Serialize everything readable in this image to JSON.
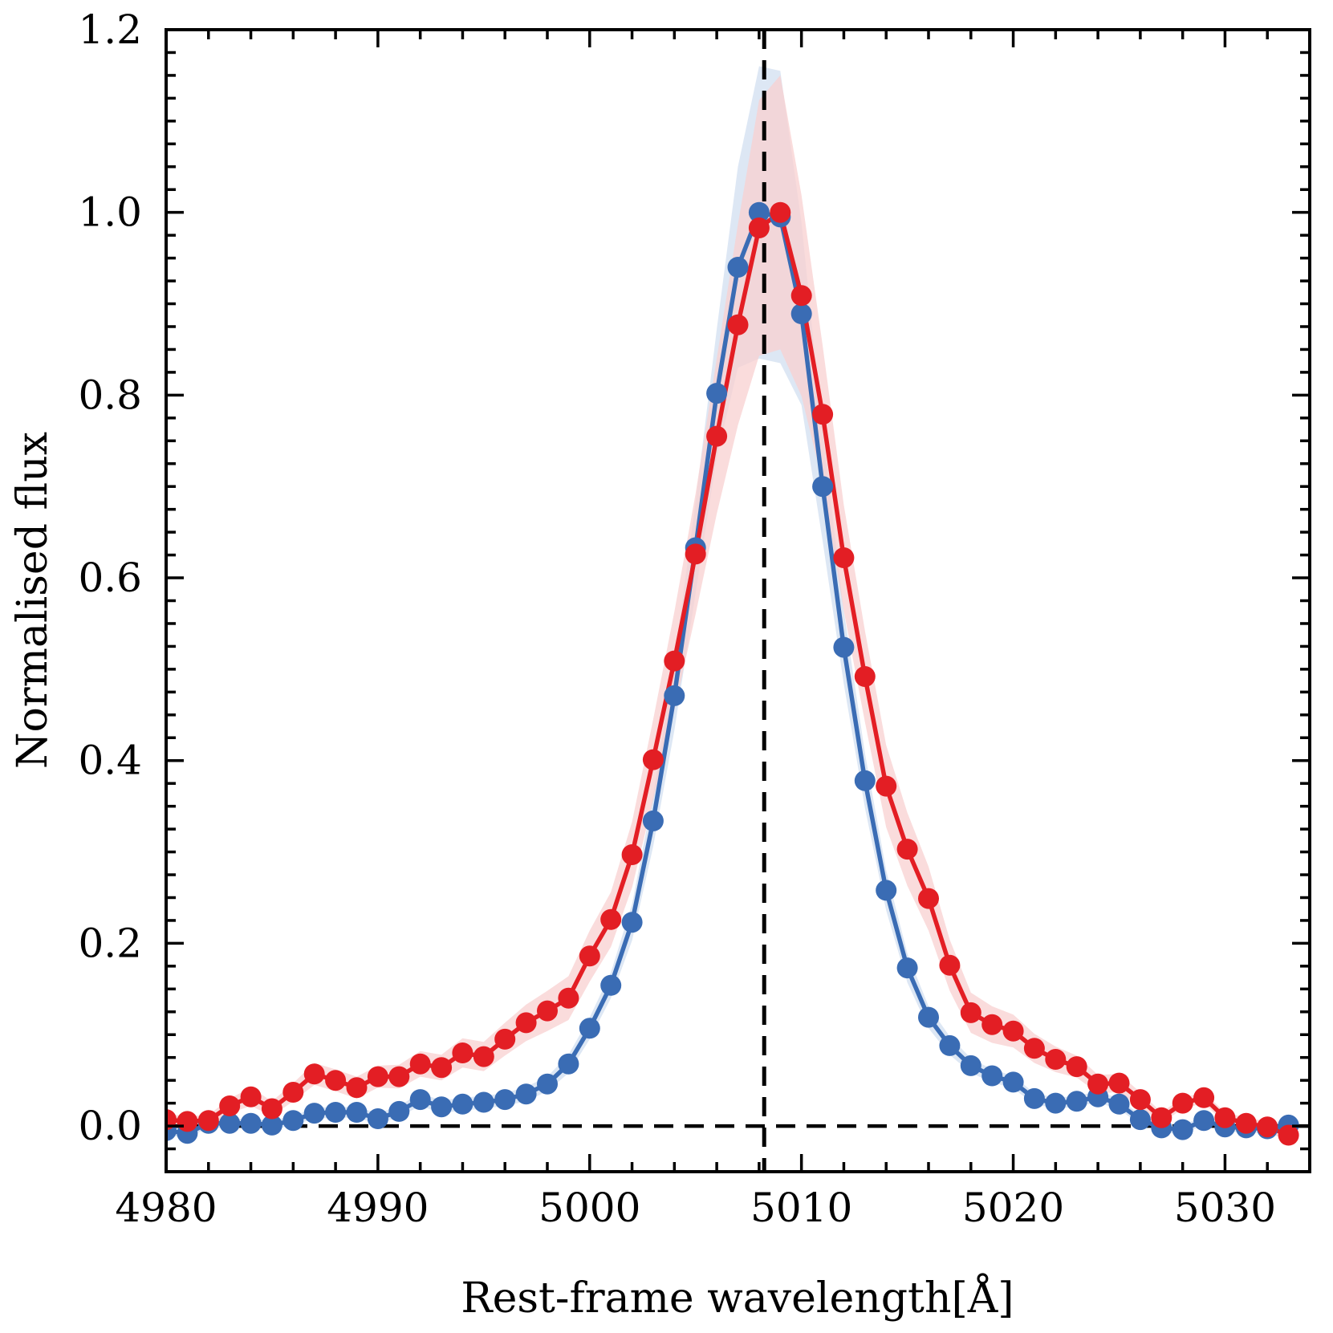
{
  "chart_data": {
    "type": "line",
    "title": "",
    "xlabel": "Rest-frame wavelength[Å]",
    "ylabel": "Normalised flux",
    "xlim": [
      4980,
      5034
    ],
    "ylim": [
      -0.05,
      1.2
    ],
    "xticks": [
      4980,
      4990,
      5000,
      5010,
      5020,
      5030
    ],
    "xtick_labels": [
      "4980",
      "4990",
      "5000",
      "5010",
      "5020",
      "5030"
    ],
    "yticks": [
      0.0,
      0.2,
      0.4,
      0.6,
      0.8,
      1.0,
      1.2
    ],
    "ytick_labels": [
      "0.0",
      "0.2",
      "0.4",
      "0.6",
      "0.8",
      "1.0",
      "1.2"
    ],
    "vline_x": 5008.24,
    "hline_y": 0.0,
    "x": [
      4980,
      4981,
      4982,
      4983,
      4984,
      4985,
      4986,
      4987,
      4988,
      4989,
      4990,
      4991,
      4992,
      4993,
      4994,
      4995,
      4996,
      4997,
      4998,
      4999,
      5000,
      5001,
      5002,
      5003,
      5004,
      5005,
      5006,
      5007,
      5008,
      5009,
      5010,
      5011,
      5012,
      5013,
      5014,
      5015,
      5016,
      5017,
      5018,
      5019,
      5020,
      5021,
      5022,
      5023,
      5024,
      5025,
      5026,
      5027,
      5028,
      5029,
      5030,
      5031,
      5032,
      5033
    ],
    "series": [
      {
        "name": "blue",
        "color": "#3a6cb4",
        "band_color": "#d2dff0",
        "values": [
          -0.005,
          -0.008,
          0.003,
          0.003,
          0.003,
          0.001,
          0.006,
          0.014,
          0.015,
          0.015,
          0.008,
          0.016,
          0.029,
          0.021,
          0.024,
          0.026,
          0.029,
          0.035,
          0.046,
          0.068,
          0.107,
          0.154,
          0.223,
          0.334,
          0.471,
          0.633,
          0.802,
          0.94,
          1.0,
          0.995,
          0.889,
          0.7,
          0.524,
          0.378,
          0.258,
          0.173,
          0.119,
          0.088,
          0.066,
          0.055,
          0.048,
          0.03,
          0.025,
          0.027,
          0.032,
          0.024,
          0.007,
          -0.002,
          -0.004,
          0.006,
          -0.001,
          -0.002,
          -0.003,
          0.001
        ],
        "errors": [
          0.005,
          0.005,
          0.005,
          0.005,
          0.005,
          0.005,
          0.005,
          0.006,
          0.006,
          0.006,
          0.006,
          0.006,
          0.007,
          0.007,
          0.007,
          0.007,
          0.007,
          0.008,
          0.008,
          0.01,
          0.012,
          0.014,
          0.02,
          0.028,
          0.038,
          0.05,
          0.07,
          0.11,
          0.16,
          0.16,
          0.1,
          0.06,
          0.04,
          0.03,
          0.022,
          0.016,
          0.012,
          0.01,
          0.008,
          0.007,
          0.007,
          0.006,
          0.006,
          0.006,
          0.006,
          0.006,
          0.005,
          0.005,
          0.005,
          0.005,
          0.005,
          0.005,
          0.005,
          0.005
        ]
      },
      {
        "name": "red",
        "color": "#e31e24",
        "band_color": "#f8d0d0",
        "values": [
          0.007,
          0.005,
          0.006,
          0.022,
          0.032,
          0.019,
          0.037,
          0.057,
          0.05,
          0.042,
          0.054,
          0.054,
          0.068,
          0.064,
          0.08,
          0.076,
          0.095,
          0.113,
          0.126,
          0.14,
          0.186,
          0.226,
          0.297,
          0.401,
          0.509,
          0.626,
          0.755,
          0.877,
          0.983,
          1.0,
          0.909,
          0.779,
          0.622,
          0.492,
          0.372,
          0.303,
          0.249,
          0.176,
          0.124,
          0.111,
          0.104,
          0.085,
          0.073,
          0.065,
          0.046,
          0.047,
          0.029,
          0.009,
          0.025,
          0.031,
          0.009,
          0.003,
          -0.001,
          -0.01
        ],
        "errors": [
          0.006,
          0.006,
          0.006,
          0.008,
          0.01,
          0.008,
          0.01,
          0.012,
          0.012,
          0.012,
          0.012,
          0.013,
          0.014,
          0.014,
          0.016,
          0.016,
          0.018,
          0.02,
          0.022,
          0.024,
          0.028,
          0.03,
          0.036,
          0.044,
          0.054,
          0.066,
          0.085,
          0.11,
          0.14,
          0.15,
          0.11,
          0.075,
          0.058,
          0.05,
          0.045,
          0.04,
          0.035,
          0.028,
          0.022,
          0.02,
          0.018,
          0.016,
          0.014,
          0.012,
          0.01,
          0.01,
          0.008,
          0.006,
          0.006,
          0.006,
          0.006,
          0.006,
          0.006,
          0.006
        ]
      }
    ]
  }
}
